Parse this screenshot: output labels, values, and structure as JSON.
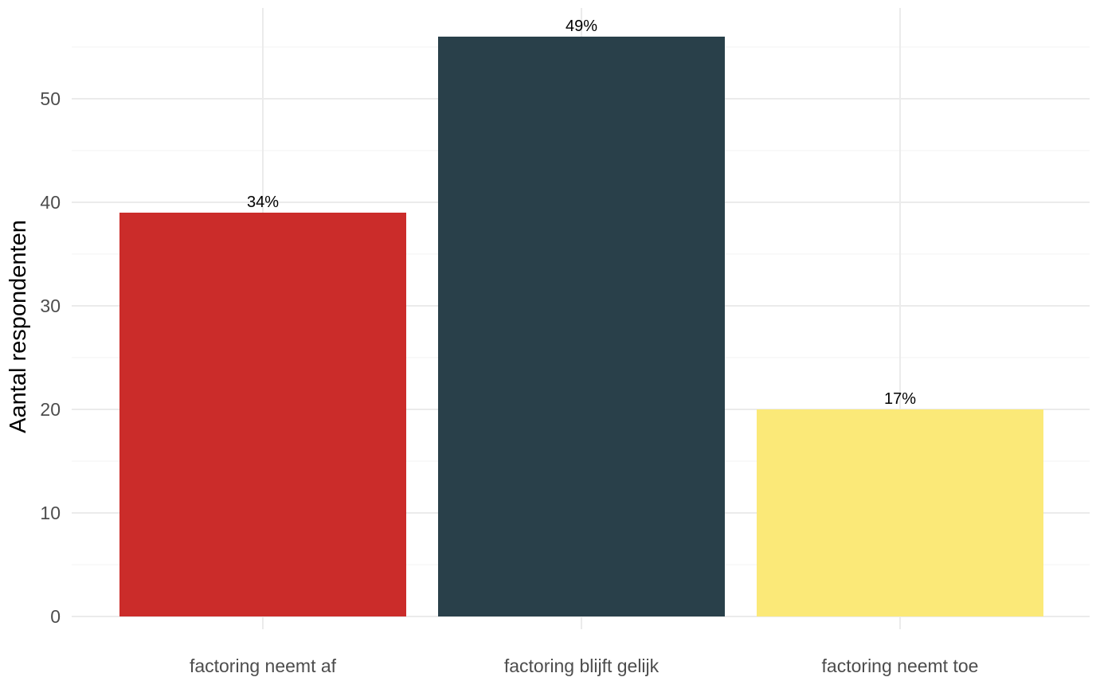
{
  "chart_data": {
    "type": "bar",
    "categories": [
      "factoring neemt af",
      "factoring blijft gelijk",
      "factoring neemt toe"
    ],
    "values": [
      39,
      56,
      20
    ],
    "data_labels": [
      "34%",
      "49%",
      "17%"
    ],
    "colors": [
      "#cb2c2a",
      "#29404a",
      "#fbe978"
    ],
    "xlabel": "",
    "ylabel": "Aantal respondenten",
    "ylim": [
      0,
      58
    ],
    "yticks": [
      0,
      10,
      20,
      30,
      40,
      50
    ],
    "grid": true,
    "legend": "none"
  }
}
